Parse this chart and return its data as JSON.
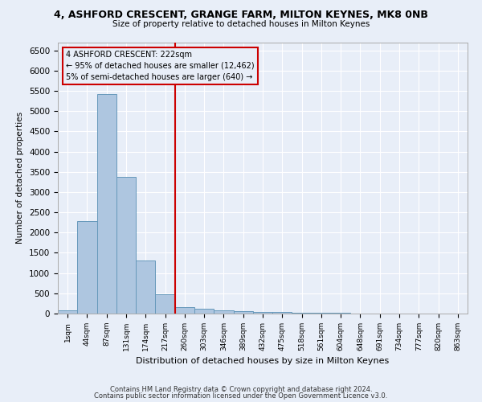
{
  "title": "4, ASHFORD CRESCENT, GRANGE FARM, MILTON KEYNES, MK8 0NB",
  "subtitle": "Size of property relative to detached houses in Milton Keynes",
  "xlabel": "Distribution of detached houses by size in Milton Keynes",
  "ylabel": "Number of detached properties",
  "footer1": "Contains HM Land Registry data © Crown copyright and database right 2024.",
  "footer2": "Contains public sector information licensed under the Open Government Licence v3.0.",
  "annotation_line1": "4 ASHFORD CRESCENT: 222sqm",
  "annotation_line2": "← 95% of detached houses are smaller (12,462)",
  "annotation_line3": "5% of semi-detached houses are larger (640) →",
  "bar_color": "#aec6e0",
  "bar_edge_color": "#6699bb",
  "vline_color": "#cc0000",
  "annotation_box_edgecolor": "#cc0000",
  "background_color": "#e8eef8",
  "grid_color": "#ffffff",
  "categories": [
    "1sqm",
    "44sqm",
    "87sqm",
    "131sqm",
    "174sqm",
    "217sqm",
    "260sqm",
    "303sqm",
    "346sqm",
    "389sqm",
    "432sqm",
    "475sqm",
    "518sqm",
    "561sqm",
    "604sqm",
    "648sqm",
    "691sqm",
    "734sqm",
    "777sqm",
    "820sqm",
    "863sqm"
  ],
  "values": [
    70,
    2280,
    5420,
    3380,
    1310,
    480,
    160,
    110,
    80,
    50,
    30,
    30,
    20,
    10,
    10,
    5,
    5,
    5,
    5,
    5,
    5
  ],
  "vline_x": 5.5,
  "ylim": [
    0,
    6700
  ],
  "yticks": [
    0,
    500,
    1000,
    1500,
    2000,
    2500,
    3000,
    3500,
    4000,
    4500,
    5000,
    5500,
    6000,
    6500
  ]
}
